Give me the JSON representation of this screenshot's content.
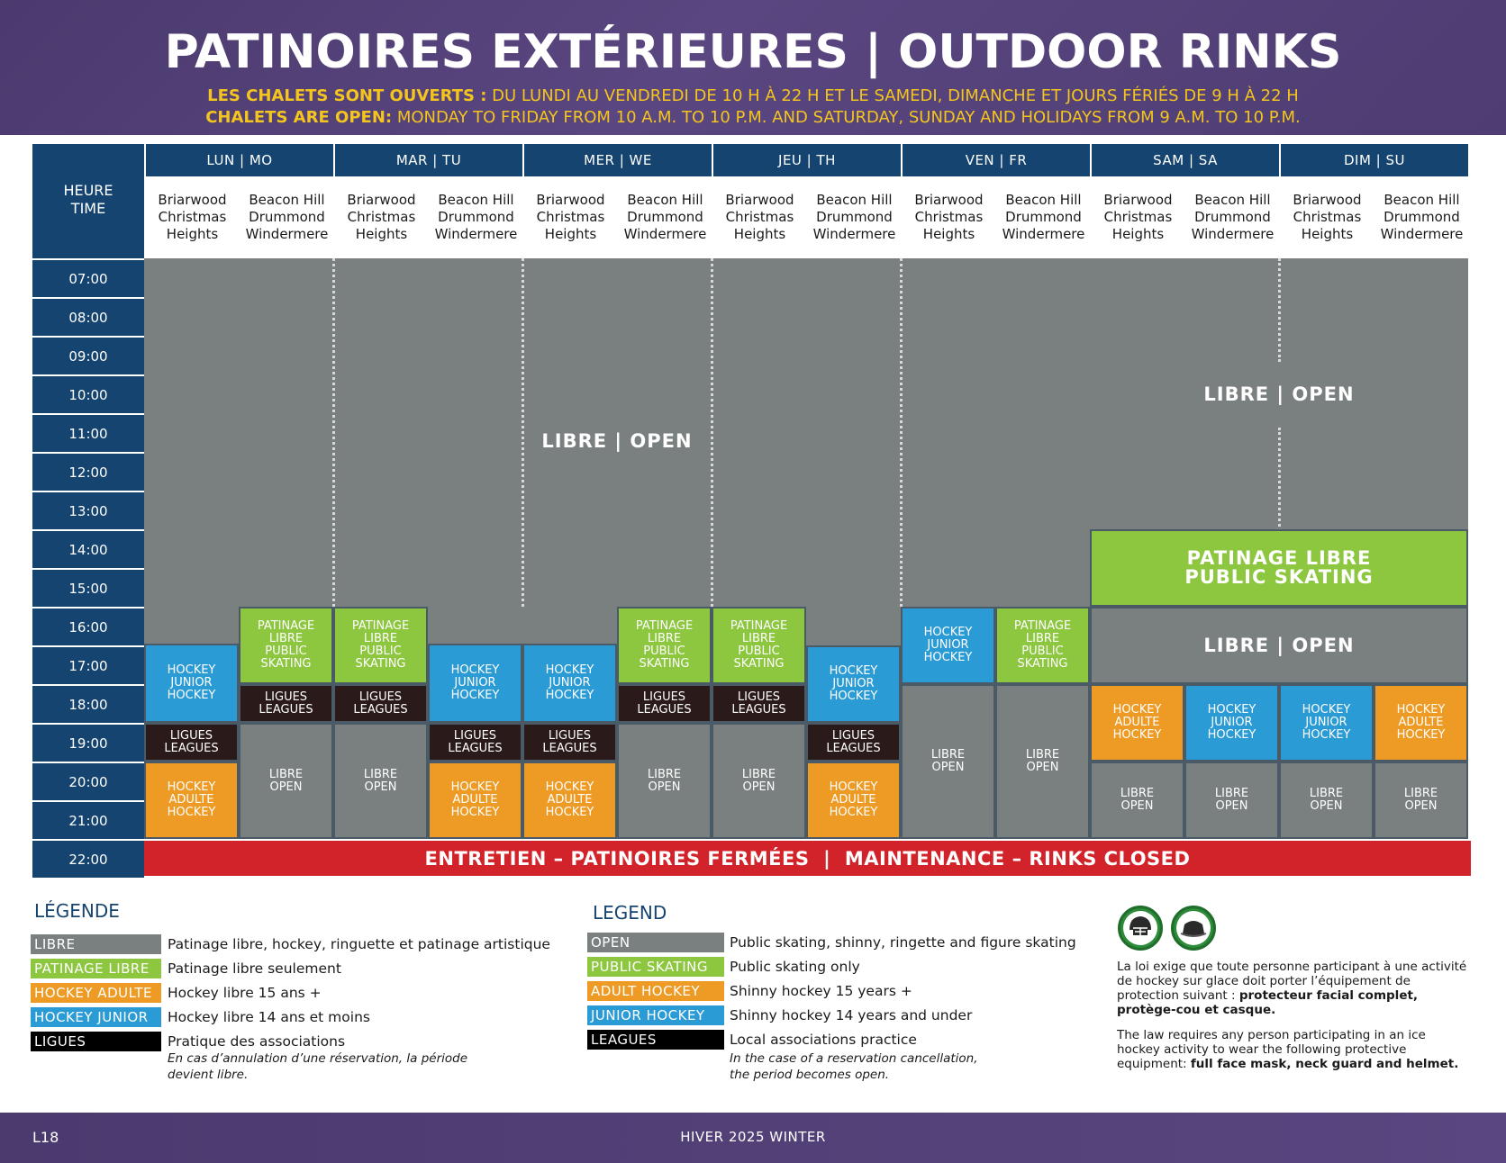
{
  "header": {
    "title": "PATINOIRES EXTÉRIEURES | OUTDOOR RINKS",
    "hours_fr_lead": "LES CHALETS SONT OUVERTS :",
    "hours_fr_rest": " DU LUNDI AU VENDREDI DE 10 H À 22 H ET LE SAMEDI, DIMANCHE ET JOURS FÉRIÉS DE 9 H À 22 H",
    "hours_en_lead": "CHALETS ARE OPEN:",
    "hours_en_rest": " MONDAY TO FRIDAY FROM 10 A.M. TO 10 P.M. AND SATURDAY, SUNDAY AND HOLIDAYS FROM 9 A.M. TO 10 P.M."
  },
  "schedule": {
    "time_header": [
      "HEURE",
      "TIME"
    ],
    "days": [
      "LUN | MO",
      "MAR | TU",
      "MER | WE",
      "JEU | TH",
      "VEN | FR",
      "SAM | SA",
      "DIM | SU"
    ],
    "rinks": [
      [
        "Briarwood",
        "Christmas",
        "Heights"
      ],
      [
        "Beacon Hill",
        "Drummond",
        "Windermere"
      ]
    ],
    "times": [
      "07:00",
      "08:00",
      "09:00",
      "10:00",
      "11:00",
      "12:00",
      "13:00",
      "14:00",
      "15:00",
      "16:00",
      "17:00",
      "18:00",
      "19:00",
      "20:00",
      "21:00",
      "22:00"
    ],
    "labels": {
      "open": "LIBRE | OPEN",
      "public_skating": [
        "PATINAGE LIBRE",
        "PUBLIC SKATING"
      ],
      "public_skating_small": [
        "PATINAGE",
        "LIBRE",
        "PUBLIC",
        "SKATING"
      ],
      "junior": [
        "HOCKEY",
        "JUNIOR",
        "HOCKEY"
      ],
      "adult": [
        "HOCKEY",
        "ADULTE",
        "HOCKEY"
      ],
      "leagues": [
        "LIGUES",
        "LEAGUES"
      ],
      "open_small": [
        "LIBRE",
        "OPEN"
      ],
      "maintenance": "ENTRETIEN – PATINOIRES FERMÉES  |  MAINTENANCE – RINKS CLOSED"
    }
  },
  "legend_fr": {
    "title": "LÉGENDE",
    "items": [
      {
        "label": "LIBRE",
        "text": "Patinage libre, hockey, ringuette et patinage artistique",
        "color": "#7a7f80"
      },
      {
        "label": "PATINAGE LIBRE",
        "text": "Patinage libre seulement",
        "color": "#8dc63f"
      },
      {
        "label": "HOCKEY ADULTE",
        "text": "Hockey libre 15 ans +",
        "color": "#ee9b25"
      },
      {
        "label": "HOCKEY JUNIOR",
        "text": "Hockey libre 14 ans et moins",
        "color": "#2b9bd5"
      },
      {
        "label": "LIGUES",
        "text": "Pratique des associations",
        "color": "#000000"
      }
    ],
    "note": [
      "En cas d’annulation d’une réservation, la période",
      "devient libre."
    ]
  },
  "legend_en": {
    "title": "LEGEND",
    "items": [
      {
        "label": "OPEN",
        "text": "Public skating, shinny, ringette and figure skating",
        "color": "#7a7f80"
      },
      {
        "label": "PUBLIC SKATING",
        "text": "Public skating only",
        "color": "#8dc63f"
      },
      {
        "label": "ADULT HOCKEY",
        "text": "Shinny hockey 15 years +",
        "color": "#ee9b25"
      },
      {
        "label": "JUNIOR HOCKEY",
        "text": "Shinny hockey 14 years and under",
        "color": "#2b9bd5"
      },
      {
        "label": "LEAGUES",
        "text": "Local associations practice",
        "color": "#000000"
      }
    ],
    "note": [
      "In the case of a reservation cancellation,",
      "the period becomes open."
    ]
  },
  "safety": {
    "icons": [
      "helmet-icon",
      "neck-guard-icon"
    ],
    "fr_text": "La loi exige que toute personne participant à une activité de hockey sur glace doit porter l’équipement de protection suivant : ",
    "fr_bold": "protecteur facial complet, protège-cou et casque.",
    "en_text": "The law requires any person participating in an ice hockey activity to wear the following protective equipment: ",
    "en_bold": "full face mask, neck guard and helmet."
  },
  "footer": {
    "page": "L18",
    "season": "HIVER 2025 WINTER"
  },
  "colors": {
    "navy": "#14446f",
    "open_grey": "#7a7f80",
    "public_green": "#8dc63f",
    "junior_blue": "#2b9bd5",
    "adult_orange": "#ee9b25",
    "leagues_black": "#2a1a1a",
    "maintenance_red": "#d2232a",
    "header_purple": "#4a3a6e",
    "hours_yellow": "#f4c51c"
  }
}
